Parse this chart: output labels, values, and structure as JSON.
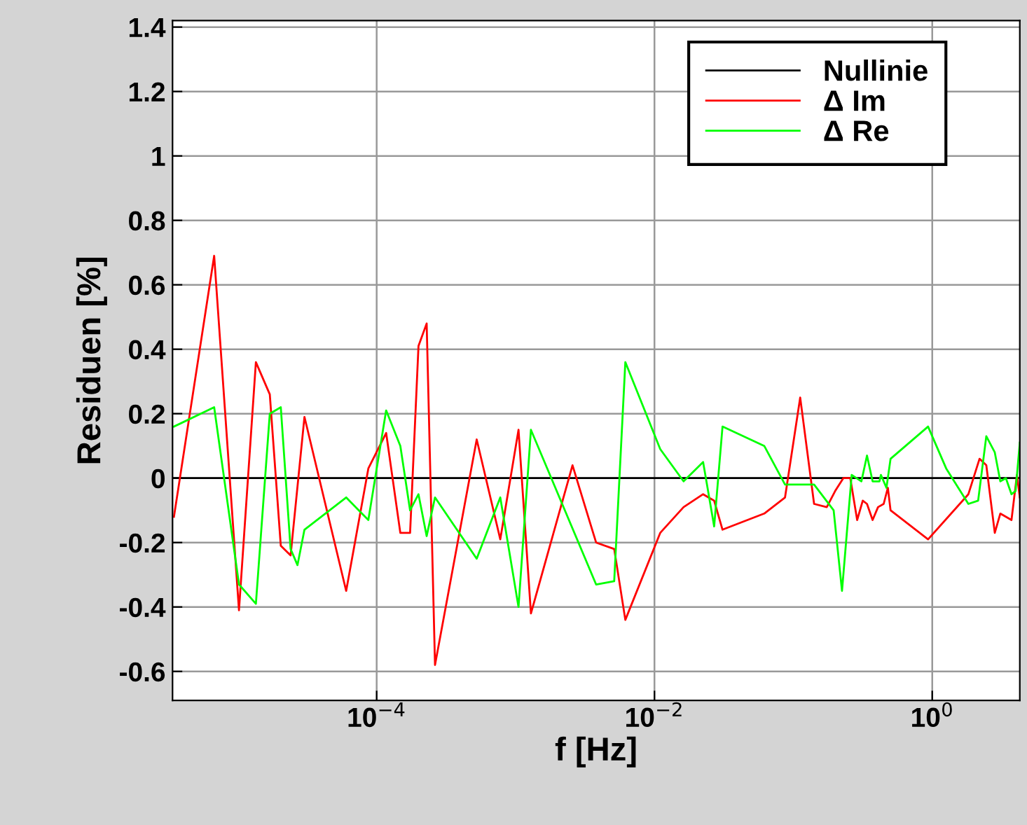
{
  "chart_data": {
    "type": "line",
    "xlabel": "f [Hz]",
    "ylabel": "Residuen [%]",
    "log": "x",
    "grid": true,
    "legend": "top right",
    "xlim": [
      3.39e-06,
      4.27
    ],
    "xticks": [
      {
        "value": 0.0001,
        "label": "10$^{−4}$"
      },
      {
        "value": 0.01,
        "label": "10$^{−2}$"
      },
      {
        "value": 1,
        "label": "10$^{0}$"
      }
    ],
    "ylim": [
      -0.69,
      1.42
    ],
    "yticks": [
      -0.6,
      -0.4,
      -0.2,
      0,
      0.2,
      0.4,
      0.6,
      0.8,
      1,
      1.2,
      1.4
    ],
    "series": [
      {
        "name": "Nullinie",
        "color": "#000000",
        "x": [
          3.39e-06,
          4.27
        ],
        "values": [
          0,
          0
        ]
      },
      {
        "name": "Δ Im",
        "color": "#ff0000",
        "x": [
          3.47e-06,
          6.76e-06,
          1.02e-05,
          1.35e-05,
          1.7e-05,
          2.04e-05,
          2.4e-05,
          3.02e-05,
          6.03e-05,
          8.71e-05,
          0.000117,
          0.000148,
          0.000174,
          0.0002,
          0.000229,
          0.000263,
          0.000525,
          0.000776,
          0.00105,
          0.00129,
          0.00257,
          0.0038,
          0.00513,
          0.00617,
          0.011,
          0.0162,
          0.0224,
          0.0269,
          0.0309,
          0.0617,
          0.0871,
          0.112,
          0.141,
          0.174,
          0.2,
          0.229,
          0.257,
          0.288,
          0.316,
          0.339,
          0.372,
          0.407,
          0.447,
          0.479,
          0.501,
          0.933,
          1.82,
          2.19,
          2.45,
          2.82,
          3.09,
          3.72,
          4.07,
          4.27
        ],
        "values": [
          -0.12,
          0.69,
          -0.41,
          0.36,
          0.26,
          -0.21,
          -0.24,
          0.19,
          -0.35,
          0.03,
          0.14,
          -0.17,
          -0.17,
          0.41,
          0.48,
          -0.58,
          0.12,
          -0.19,
          0.15,
          -0.42,
          0.04,
          -0.2,
          -0.22,
          -0.44,
          -0.17,
          -0.09,
          -0.05,
          -0.07,
          -0.16,
          -0.11,
          -0.06,
          0.25,
          -0.08,
          -0.09,
          -0.04,
          0.0,
          0.0,
          -0.13,
          -0.07,
          -0.08,
          -0.13,
          -0.09,
          -0.08,
          -0.03,
          -0.1,
          -0.19,
          -0.05,
          0.06,
          0.04,
          -0.17,
          -0.11,
          -0.13,
          0.01,
          -0.06
        ]
      },
      {
        "name": "Δ Re",
        "color": "#00ff00",
        "x": [
          3.47e-06,
          6.76e-06,
          1.02e-05,
          1.35e-05,
          1.7e-05,
          2.04e-05,
          2.4e-05,
          2.69e-05,
          3.02e-05,
          6.03e-05,
          8.71e-05,
          0.000117,
          0.000148,
          0.000174,
          0.0002,
          0.000229,
          0.000263,
          0.000525,
          0.000776,
          0.00105,
          0.00129,
          0.0038,
          0.00513,
          0.00617,
          0.011,
          0.0162,
          0.0224,
          0.0269,
          0.0309,
          0.0617,
          0.0871,
          0.141,
          0.195,
          0.224,
          0.263,
          0.309,
          0.339,
          0.372,
          0.417,
          0.427,
          0.468,
          0.501,
          0.933,
          1.26,
          1.82,
          2.14,
          2.45,
          2.82,
          3.09,
          3.39,
          3.72,
          3.98,
          4.27
        ],
        "values": [
          0.16,
          0.22,
          -0.33,
          -0.39,
          0.2,
          0.22,
          -0.22,
          -0.27,
          -0.16,
          -0.06,
          -0.13,
          0.21,
          0.1,
          -0.1,
          -0.05,
          -0.18,
          -0.06,
          -0.25,
          -0.06,
          -0.4,
          0.15,
          -0.33,
          -0.32,
          0.36,
          0.09,
          -0.01,
          0.05,
          -0.15,
          0.16,
          0.1,
          -0.02,
          -0.02,
          -0.1,
          -0.35,
          0.01,
          -0.01,
          0.07,
          -0.01,
          -0.01,
          0.01,
          -0.03,
          0.06,
          0.16,
          0.03,
          -0.08,
          -0.07,
          0.13,
          0.08,
          -0.01,
          0.0,
          -0.05,
          -0.04,
          0.11
        ]
      }
    ]
  }
}
